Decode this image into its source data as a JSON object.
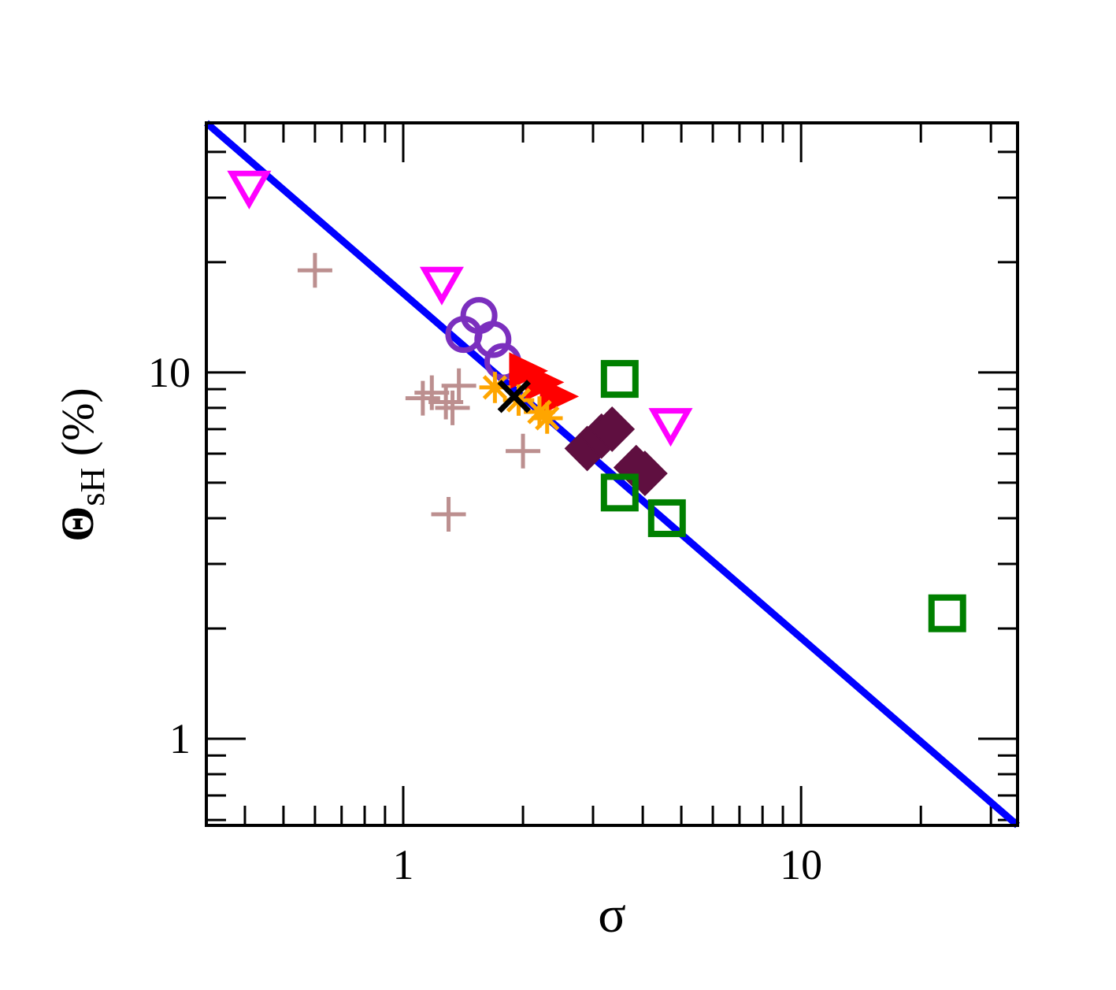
{
  "chart_data": {
    "type": "scatter",
    "xscale": "log",
    "yscale": "log",
    "xlim": [
      0.32,
      35
    ],
    "ylim": [
      0.58,
      48
    ],
    "xlabel": "σ",
    "ylabel_main": "Θ",
    "ylabel_sub": "sH",
    "ylabel_unit": "(%)",
    "x_ticks": [
      {
        "value": 1,
        "label": "1"
      },
      {
        "value": 10,
        "label": "10"
      }
    ],
    "y_ticks": [
      {
        "value": 1,
        "label": "1"
      },
      {
        "value": 10,
        "label": "10"
      }
    ],
    "fit_line": {
      "color": "#0000ff",
      "points": [
        [
          0.32,
          48
        ],
        [
          35,
          0.58
        ]
      ]
    },
    "series": [
      {
        "marker": "triangle-down",
        "color": "#ff00ff",
        "points": [
          [
            0.41,
            32
          ],
          [
            1.25,
            17.5
          ],
          [
            4.7,
            7.2
          ]
        ]
      },
      {
        "marker": "plus",
        "color": "#bc8f8f",
        "points": [
          [
            0.6,
            19
          ],
          [
            1.12,
            8.5
          ],
          [
            1.18,
            8.8
          ],
          [
            1.28,
            8.3
          ],
          [
            1.33,
            8.0
          ],
          [
            1.38,
            9.2
          ],
          [
            2.0,
            6.1
          ],
          [
            1.3,
            4.1
          ]
        ]
      },
      {
        "marker": "circle",
        "color": "#7b2fbe",
        "points": [
          [
            1.55,
            14.3
          ],
          [
            1.42,
            12.7
          ],
          [
            1.68,
            12.3
          ],
          [
            1.78,
            10.7
          ]
        ]
      },
      {
        "marker": "triangle-right-filled",
        "color": "#ff0000",
        "points": [
          [
            2.05,
            10.1
          ],
          [
            2.25,
            9.4
          ],
          [
            2.45,
            8.6
          ]
        ]
      },
      {
        "marker": "asterisk",
        "color": "#ffa500",
        "points": [
          [
            1.7,
            9.1
          ],
          [
            1.95,
            8.4
          ],
          [
            2.2,
            7.8
          ],
          [
            2.3,
            7.5
          ]
        ]
      },
      {
        "marker": "x",
        "color": "#000000",
        "points": [
          [
            1.9,
            8.6
          ]
        ]
      },
      {
        "marker": "diamond-filled",
        "color": "#5f0f40",
        "points": [
          [
            2.9,
            6.2
          ],
          [
            3.15,
            6.7
          ],
          [
            3.35,
            7.0
          ],
          [
            3.85,
            5.5
          ],
          [
            4.05,
            5.3
          ]
        ]
      },
      {
        "marker": "square",
        "color": "#008000",
        "points": [
          [
            3.5,
            9.6
          ],
          [
            3.5,
            4.7
          ],
          [
            4.6,
            4.0
          ],
          [
            23.3,
            2.2
          ]
        ]
      }
    ]
  }
}
